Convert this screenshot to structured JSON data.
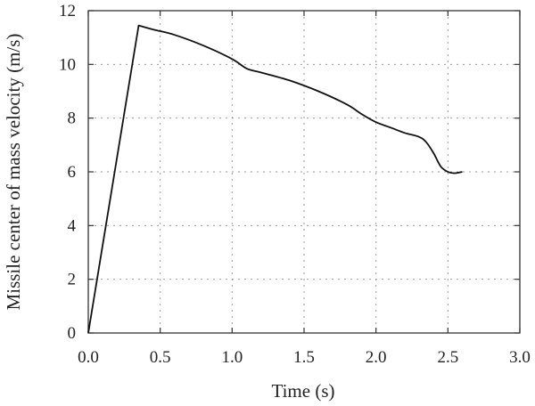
{
  "chart_data": {
    "type": "line",
    "title": "",
    "xlabel": "Time (s)",
    "ylabel": "Missile center of mass velocity (m/s)",
    "xlim": [
      0,
      3
    ],
    "ylim": [
      0,
      12
    ],
    "x_ticks": [
      "0.0",
      "0.5",
      "1.0",
      "1.5",
      "2.0",
      "2.5",
      "3.0"
    ],
    "y_ticks": [
      "0",
      "2",
      "4",
      "6",
      "8",
      "10",
      "12"
    ],
    "grid": true,
    "series": [
      {
        "x": [
          0,
          0.35,
          0.45,
          0.6,
          0.8,
          1.0,
          1.1,
          1.2,
          1.4,
          1.6,
          1.8,
          1.9,
          2.0,
          2.1,
          2.2,
          2.3,
          2.35,
          2.4,
          2.45,
          2.5,
          2.55,
          2.6
        ],
        "y": [
          0,
          11.45,
          11.3,
          11.1,
          10.7,
          10.2,
          9.85,
          9.7,
          9.4,
          9.0,
          8.5,
          8.15,
          7.85,
          7.65,
          7.45,
          7.3,
          7.1,
          6.7,
          6.2,
          6.0,
          5.95,
          6.0
        ]
      }
    ]
  }
}
